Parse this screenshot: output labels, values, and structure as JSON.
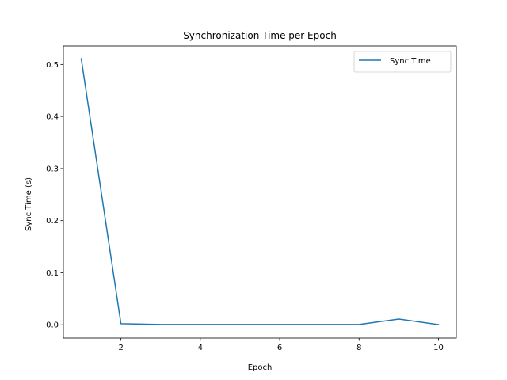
{
  "chart_data": {
    "type": "line",
    "title": "Synchronization Time per Epoch",
    "xlabel": "Epoch",
    "ylabel": "Sync Time (s)",
    "xlim": [
      0.55,
      10.45
    ],
    "ylim": [
      -0.0255,
      0.5355
    ],
    "x_ticks": [
      2,
      4,
      6,
      8,
      10
    ],
    "y_ticks": [
      0.0,
      0.1,
      0.2,
      0.3,
      0.4,
      0.5
    ],
    "x_tick_labels": [
      "2",
      "4",
      "6",
      "8",
      "10"
    ],
    "y_tick_labels": [
      "0.0",
      "0.1",
      "0.2",
      "0.3",
      "0.4",
      "0.5"
    ],
    "grid": false,
    "legend_position": "top-right",
    "series": [
      {
        "name": "Sync Time",
        "color": "#1f77b4",
        "x": [
          1,
          2,
          3,
          4,
          5,
          6,
          7,
          8,
          9,
          10
        ],
        "values": [
          0.511,
          0.002,
          0.0005,
          0.0005,
          0.0005,
          0.0005,
          0.0005,
          0.0005,
          0.011,
          0.0003
        ]
      }
    ]
  }
}
